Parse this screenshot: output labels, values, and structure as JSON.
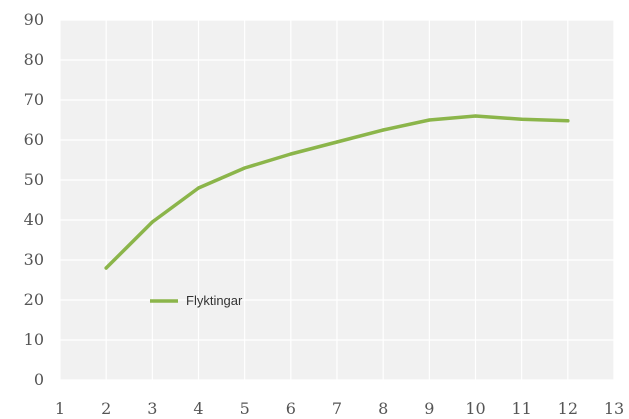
{
  "chart_data": {
    "type": "line",
    "x": [
      2,
      3,
      4,
      5,
      6,
      7,
      8,
      9,
      10,
      11,
      12
    ],
    "series": [
      {
        "name": "Flyktingar",
        "values": [
          28,
          39.5,
          48,
          53,
          56.5,
          59.5,
          62.5,
          65,
          66,
          65.2,
          64.8
        ],
        "color": "#8bb54a"
      }
    ],
    "xticks": [
      "1",
      "2",
      "3",
      "4",
      "5",
      "6",
      "7",
      "8",
      "9",
      "10",
      "11",
      "12",
      "13"
    ],
    "yticks": [
      "0",
      "10",
      "20",
      "30",
      "40",
      "50",
      "60",
      "70",
      "80",
      "90"
    ],
    "xlim": [
      1,
      13
    ],
    "ylim": [
      0,
      90
    ],
    "grid": true,
    "legend_position": "inside-lower-left",
    "title": "",
    "xlabel": "",
    "ylabel": ""
  },
  "colors": {
    "plot_background": "#f1f1f1",
    "gridline": "#ffffff",
    "series": "#8bb54a"
  }
}
